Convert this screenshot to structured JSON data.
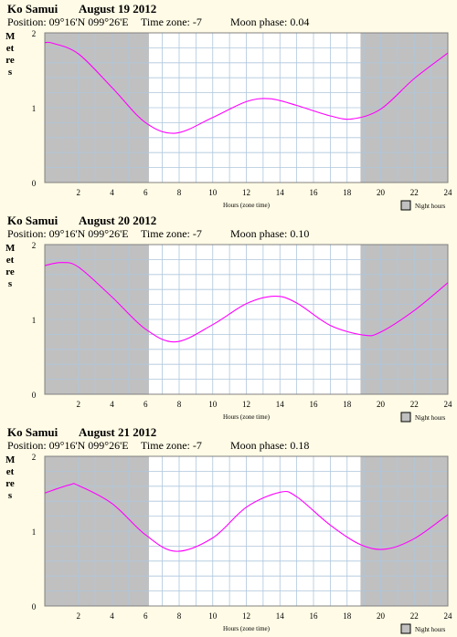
{
  "charts": [
    {
      "place": "Ko Samui",
      "date": "August 19 2012",
      "position": "Position: 09°16'N 099°26'E",
      "timezone": "Time zone: -7",
      "moon": "Moon phase: 0.04",
      "ylabel": "Metres",
      "xlabel": "Hours (zone time)",
      "legend": "Night hours"
    },
    {
      "place": "Ko Samui",
      "date": "August 20 2012",
      "position": "Position: 09°16'N 099°26'E",
      "timezone": "Time zone: -7",
      "moon": "Moon phase: 0.10",
      "ylabel": "Metres",
      "xlabel": "Hours (zone time)",
      "legend": "Night hours"
    },
    {
      "place": "Ko Samui",
      "date": "August 21 2012",
      "position": "Position: 09°16'N 099°26'E",
      "timezone": "Time zone: -7",
      "moon": "Moon phase: 0.18",
      "ylabel": "Metres",
      "xlabel": "Hours (zone time)",
      "legend": "Night hours"
    }
  ],
  "colors": {
    "background": "#fffbe6",
    "night": "#c0c0c0",
    "grid": "#aec6dc",
    "curve": "#ff00ff"
  },
  "chart_data": [
    {
      "type": "line",
      "title": "Ko Samui August 19 2012",
      "xlabel": "Hours (zone time)",
      "ylabel": "Metres",
      "xlim": [
        0,
        24
      ],
      "ylim": [
        0,
        2
      ],
      "xticks": [
        "2",
        "4",
        "6",
        "8",
        "10",
        "12",
        "14",
        "16",
        "18",
        "20",
        "22",
        "24"
      ],
      "yticks": [
        "0",
        "1",
        "2"
      ],
      "night_hours": [
        [
          0,
          6.2
        ],
        [
          18.8,
          24
        ]
      ],
      "series": [
        {
          "x": [
            0,
            0.5,
            2,
            4,
            6,
            7.8,
            10,
            12,
            13.4,
            15,
            17,
            18.3,
            20,
            22,
            24
          ],
          "values": [
            1.87,
            1.86,
            1.72,
            1.27,
            0.8,
            0.66,
            0.87,
            1.08,
            1.12,
            1.03,
            0.89,
            0.85,
            0.98,
            1.39,
            1.73
          ]
        }
      ]
    },
    {
      "type": "line",
      "title": "Ko Samui August 20 2012",
      "xlabel": "Hours (zone time)",
      "ylabel": "Metres",
      "xlim": [
        0,
        24
      ],
      "ylim": [
        0,
        2
      ],
      "xticks": [
        "2",
        "4",
        "6",
        "8",
        "10",
        "12",
        "14",
        "16",
        "18",
        "20",
        "22",
        "24"
      ],
      "yticks": [
        "0",
        "1",
        "2"
      ],
      "night_hours": [
        [
          0,
          6.2
        ],
        [
          18.8,
          24
        ]
      ],
      "series": [
        {
          "x": [
            0,
            1.0,
            2,
            4,
            6,
            7.8,
            10,
            12,
            13.7,
            15,
            17,
            19,
            20,
            22,
            24
          ],
          "values": [
            1.72,
            1.76,
            1.7,
            1.3,
            0.87,
            0.7,
            0.93,
            1.21,
            1.31,
            1.22,
            0.92,
            0.79,
            0.83,
            1.12,
            1.49
          ]
        }
      ]
    },
    {
      "type": "line",
      "title": "Ko Samui August 21 2012",
      "xlabel": "Hours (zone time)",
      "ylabel": "Metres",
      "xlim": [
        0,
        24
      ],
      "ylim": [
        0,
        2
      ],
      "xticks": [
        "2",
        "4",
        "6",
        "8",
        "10",
        "12",
        "14",
        "16",
        "18",
        "20",
        "22",
        "24"
      ],
      "yticks": [
        "0",
        "1",
        "2"
      ],
      "night_hours": [
        [
          0,
          6.2
        ],
        [
          18.8,
          24
        ]
      ],
      "series": [
        {
          "x": [
            0,
            1.5,
            2,
            4,
            6,
            7.8,
            10,
            12,
            14.0,
            15,
            17,
            18.8,
            20.3,
            22,
            24
          ],
          "values": [
            1.51,
            1.62,
            1.61,
            1.37,
            0.95,
            0.73,
            0.91,
            1.32,
            1.52,
            1.46,
            1.08,
            0.82,
            0.76,
            0.9,
            1.22
          ]
        }
      ]
    }
  ]
}
